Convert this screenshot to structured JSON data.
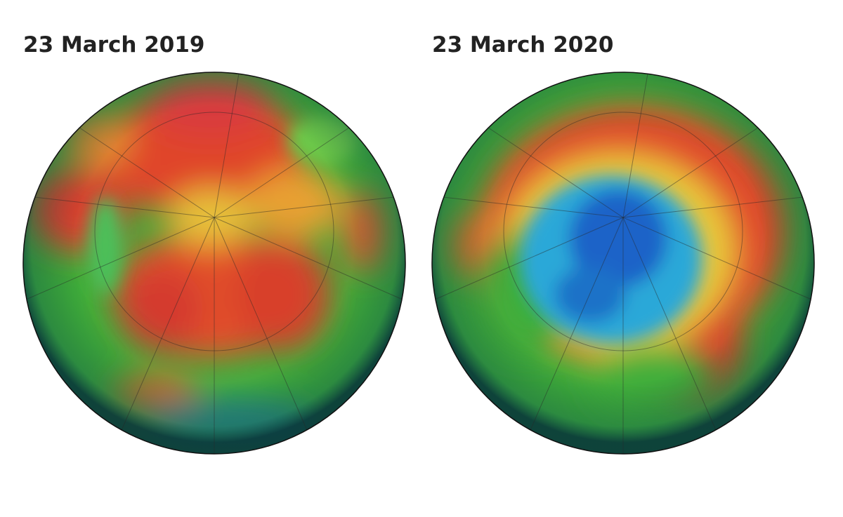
{
  "panels": [
    {
      "title": "23 March 2019"
    },
    {
      "title": "23 March 2020"
    }
  ]
}
